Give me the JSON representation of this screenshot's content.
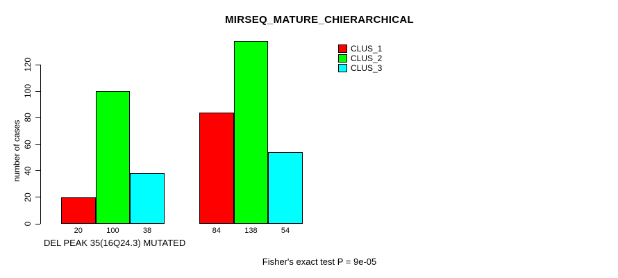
{
  "chart_data": {
    "type": "bar",
    "title": "MIRSEQ_MATURE_CHIERARCHICAL",
    "ylabel": "number of cases",
    "xlabel": "DEL PEAK 35(16Q24.3) MUTATED",
    "annotation": "Fisher's exact test P = 9e-05",
    "categories": [
      "DEL PEAK 35(16Q24.3) MUTATED",
      ""
    ],
    "series": [
      {
        "name": "CLUS_1",
        "color": "#ff0000",
        "values": [
          20,
          84
        ]
      },
      {
        "name": "CLUS_2",
        "color": "#00ff00",
        "values": [
          100,
          138
        ]
      },
      {
        "name": "CLUS_3",
        "color": "#00ffff",
        "values": [
          38,
          54
        ]
      }
    ],
    "bar_labels": [
      [
        20,
        100,
        38
      ],
      [
        84,
        138,
        54
      ]
    ],
    "yticks": [
      0,
      20,
      40,
      60,
      80,
      100,
      120
    ],
    "ylim": [
      0,
      140
    ],
    "grid": false,
    "legend": [
      "CLUS_1",
      "CLUS_2",
      "CLUS_3"
    ],
    "legend_position": "top-right",
    "legend_colors": [
      "#ff0000",
      "#00ff00",
      "#00ffff"
    ]
  }
}
